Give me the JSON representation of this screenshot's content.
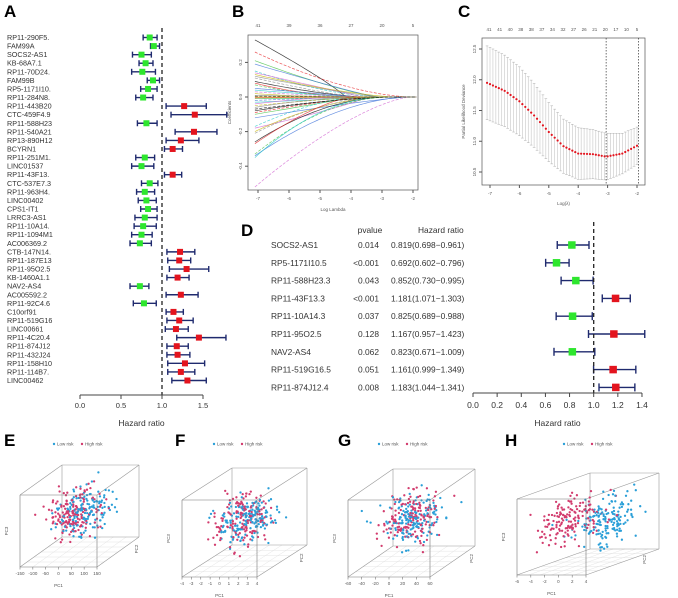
{
  "colors": {
    "protective": "#2ee62e",
    "risk": "#e3141e",
    "errorbar": "#1f2a6e",
    "low_risk": "#2a9fd8",
    "high_risk": "#d23c6e",
    "cv_curve": "#e3141e"
  },
  "chart_data": [
    {
      "panel": "A",
      "type": "forest",
      "xlabel": "Hazard ratio",
      "xticks": [
        "0.0",
        "0.5",
        "1.0",
        "1.5"
      ],
      "xlim": [
        0,
        1.5
      ],
      "reference_line": 1.0,
      "rows": [
        {
          "label": "RP11-290F5.",
          "hr": 0.85,
          "lo": 0.77,
          "hi": 0.94
        },
        {
          "label": "FAM99A",
          "hr": 0.9,
          "lo": 0.86,
          "hi": 0.97
        },
        {
          "label": "SOCS2-AS1",
          "hr": 0.75,
          "lo": 0.64,
          "hi": 0.87
        },
        {
          "label": "KB-68A7.1",
          "hr": 0.8,
          "lo": 0.72,
          "hi": 0.89
        },
        {
          "label": "RP11-70D24.",
          "hr": 0.76,
          "lo": 0.63,
          "hi": 0.92
        },
        {
          "label": "FAM99B",
          "hr": 0.89,
          "lo": 0.82,
          "hi": 0.97
        },
        {
          "label": "RP5-1171I10.",
          "hr": 0.83,
          "lo": 0.74,
          "hi": 0.94
        },
        {
          "label": "RP11-284N8.",
          "hr": 0.77,
          "lo": 0.68,
          "hi": 0.89
        },
        {
          "label": "RP11-443B20",
          "hr": 1.27,
          "lo": 1.05,
          "hi": 1.54
        },
        {
          "label": "CTC-459F4.9",
          "hr": 1.4,
          "lo": 1.11,
          "hi": 1.79
        },
        {
          "label": "RP11-588H23",
          "hr": 0.81,
          "lo": 0.7,
          "hi": 0.94
        },
        {
          "label": "RP11-540A21",
          "hr": 1.39,
          "lo": 1.16,
          "hi": 1.67
        },
        {
          "label": "RP13-890H12",
          "hr": 1.23,
          "lo": 1.05,
          "hi": 1.45
        },
        {
          "label": "BCYRN1",
          "hr": 1.13,
          "lo": 1.03,
          "hi": 1.25
        },
        {
          "label": "RP11-251M1.",
          "hr": 0.79,
          "lo": 0.68,
          "hi": 0.91
        },
        {
          "label": "LINC01537",
          "hr": 0.75,
          "lo": 0.63,
          "hi": 0.9
        },
        {
          "label": "RP11-43F13.",
          "hr": 1.13,
          "lo": 1.03,
          "hi": 1.24
        },
        {
          "label": "CTC-537E7.3",
          "hr": 0.85,
          "lo": 0.75,
          "hi": 0.95
        },
        {
          "label": "RP11-963H4.",
          "hr": 0.79,
          "lo": 0.69,
          "hi": 0.91
        },
        {
          "label": "LINC00402",
          "hr": 0.81,
          "lo": 0.71,
          "hi": 0.93
        },
        {
          "label": "CPS1-IT1",
          "hr": 0.83,
          "lo": 0.74,
          "hi": 0.94
        },
        {
          "label": "LRRC3-AS1",
          "hr": 0.79,
          "lo": 0.67,
          "hi": 0.94
        },
        {
          "label": "RP11-10A14.",
          "hr": 0.77,
          "lo": 0.66,
          "hi": 0.93
        },
        {
          "label": "RP11-1094M1",
          "hr": 0.75,
          "lo": 0.63,
          "hi": 0.88
        },
        {
          "label": "AC006369.2",
          "hr": 0.73,
          "lo": 0.61,
          "hi": 0.87
        },
        {
          "label": "CTB-147N14.",
          "hr": 1.22,
          "lo": 1.06,
          "hi": 1.4
        },
        {
          "label": "RP11-187E13",
          "hr": 1.21,
          "lo": 1.07,
          "hi": 1.35
        },
        {
          "label": "RP11-95O2.5",
          "hr": 1.3,
          "lo": 1.09,
          "hi": 1.57
        },
        {
          "label": "KB-1460A1.1",
          "hr": 1.19,
          "lo": 1.06,
          "hi": 1.33
        },
        {
          "label": "NAV2-AS4",
          "hr": 0.73,
          "lo": 0.61,
          "hi": 0.84
        },
        {
          "label": "AC005592.2",
          "hr": 1.23,
          "lo": 1.05,
          "hi": 1.44
        },
        {
          "label": "RP11-92C4.6",
          "hr": 0.78,
          "lo": 0.65,
          "hi": 0.93
        },
        {
          "label": "C10orf91",
          "hr": 1.14,
          "lo": 1.05,
          "hi": 1.26
        },
        {
          "label": "RP11-519G16",
          "hr": 1.21,
          "lo": 1.06,
          "hi": 1.38
        },
        {
          "label": "LINC00661",
          "hr": 1.17,
          "lo": 1.04,
          "hi": 1.32
        },
        {
          "label": "RP11-4C20.4",
          "hr": 1.45,
          "lo": 1.18,
          "hi": 1.78
        },
        {
          "label": "RP11-874J12",
          "hr": 1.18,
          "lo": 1.06,
          "hi": 1.32
        },
        {
          "label": "RP11-432J24",
          "hr": 1.19,
          "lo": 1.06,
          "hi": 1.34
        },
        {
          "label": "RP11-158H10",
          "hr": 1.28,
          "lo": 1.07,
          "hi": 1.52
        },
        {
          "label": "RP11-114B7.",
          "hr": 1.23,
          "lo": 1.07,
          "hi": 1.4
        },
        {
          "label": "LINC00462",
          "hr": 1.31,
          "lo": 1.12,
          "hi": 1.54
        }
      ]
    },
    {
      "panel": "B",
      "type": "line",
      "xlabel": "Log Lambda",
      "ylabel": "Coefficients",
      "xlim": [
        -7.1,
        -1.9
      ],
      "ylim": [
        -0.53,
        0.36
      ],
      "xticks": [
        "-7",
        "-6",
        "-5",
        "-4",
        "-3",
        "-2"
      ],
      "yticks": [
        "-0.4",
        "-0.2",
        "0.0",
        "0.2"
      ],
      "top_ticks": [
        "41",
        "39",
        "36",
        "27",
        "20",
        "5"
      ],
      "start_coefficients": [
        0.33,
        0.26,
        0.21,
        0.19,
        0.15,
        0.14,
        0.13,
        0.11,
        0.09,
        0.08,
        0.07,
        0.05,
        0.04,
        0.03,
        0.02,
        0.01,
        0.005,
        -0.005,
        -0.01,
        -0.02,
        -0.03,
        -0.04,
        -0.05,
        -0.06,
        -0.08,
        -0.09,
        -0.1,
        -0.12,
        -0.17,
        -0.18,
        -0.2,
        -0.21,
        -0.26,
        -0.27,
        -0.33,
        -0.34,
        -0.35,
        -0.52,
        0.0,
        0.12,
        -0.07
      ]
    },
    {
      "panel": "C",
      "type": "line",
      "xlabel": "Log(λ)",
      "ylabel": "Partial Likelihood Deviance",
      "xlim": [
        -7.1,
        -1.9
      ],
      "ylim": [
        10.4,
        12.6
      ],
      "xticks": [
        "-7",
        "-6",
        "-5",
        "-4",
        "-3",
        "-2"
      ],
      "yticks": [
        "10.5",
        "11.0",
        "11.5",
        "12.0",
        "12.5"
      ],
      "top_ticks": [
        "41",
        "41",
        "40",
        "38",
        "38",
        "37",
        "34",
        "32",
        "27",
        "26",
        "21",
        "20",
        "17",
        "10",
        "5"
      ],
      "x": [
        -7.1,
        -6.5,
        -6.0,
        -5.5,
        -5.0,
        -4.5,
        -4.0,
        -3.5,
        -3.05,
        -2.5,
        -1.95
      ],
      "y": [
        11.95,
        11.82,
        11.65,
        11.42,
        11.15,
        10.92,
        10.8,
        10.79,
        10.75,
        10.8,
        10.94
      ],
      "ci_halfwidth": [
        0.6,
        0.58,
        0.56,
        0.52,
        0.48,
        0.44,
        0.42,
        0.4,
        0.38,
        0.33,
        0.3
      ],
      "vlines": [
        -3.05,
        -1.95
      ]
    },
    {
      "panel": "D",
      "type": "forest",
      "xlabel": "Hazard ratio",
      "col_pvalue": "pvalue",
      "col_hr": "Hazard ratio",
      "xticks": [
        "0.0",
        "0.2",
        "0.4",
        "0.6",
        "0.8",
        "1.0",
        "1.2",
        "1.4"
      ],
      "xlim": [
        0,
        1.4
      ],
      "reference_line": 1.0,
      "rows": [
        {
          "label": "SOCS2-AS1",
          "pvalue": "0.014",
          "hr_text": "0.819(0.698−0.961)",
          "hr": 0.819,
          "lo": 0.698,
          "hi": 0.961
        },
        {
          "label": "RP5-1171I10.5",
          "pvalue": "<0.001",
          "hr_text": "0.692(0.602−0.796)",
          "hr": 0.692,
          "lo": 0.602,
          "hi": 0.796
        },
        {
          "label": "RP11-588H23.3",
          "pvalue": "0.043",
          "hr_text": "0.852(0.730−0.995)",
          "hr": 0.852,
          "lo": 0.73,
          "hi": 0.995
        },
        {
          "label": "RP11-43F13.3",
          "pvalue": "<0.001",
          "hr_text": "1.181(1.071−1.303)",
          "hr": 1.181,
          "lo": 1.071,
          "hi": 1.303
        },
        {
          "label": "RP11-10A14.3",
          "pvalue": "0.037",
          "hr_text": "0.825(0.689−0.988)",
          "hr": 0.825,
          "lo": 0.689,
          "hi": 0.988
        },
        {
          "label": "RP11-95O2.5",
          "pvalue": "0.128",
          "hr_text": "1.167(0.957−1.423)",
          "hr": 1.167,
          "lo": 0.957,
          "hi": 1.423
        },
        {
          "label": "NAV2-AS4",
          "pvalue": "0.062",
          "hr_text": "0.823(0.671−1.009)",
          "hr": 0.823,
          "lo": 0.671,
          "hi": 1.009
        },
        {
          "label": "RP11-519G16.5",
          "pvalue": "0.051",
          "hr_text": "1.161(0.999−1.349)",
          "hr": 1.161,
          "lo": 0.999,
          "hi": 1.349
        },
        {
          "label": "RP11-874J12.4",
          "pvalue": "0.008",
          "hr_text": "1.183(1.044−1.341)",
          "hr": 1.183,
          "lo": 1.044,
          "hi": 1.341
        }
      ]
    },
    {
      "panel": "E",
      "type": "scatter",
      "legend": [
        "Low risk",
        "High risk"
      ],
      "legend_position": "top",
      "xlabel": "PC1",
      "ylabel": "PC3",
      "zlabel": "PC2",
      "xticks": [
        "-150",
        "-100",
        "-50",
        "0",
        "50",
        "100",
        "150"
      ]
    },
    {
      "panel": "F",
      "type": "scatter",
      "legend": [
        "Low risk",
        "High risk"
      ],
      "legend_position": "top",
      "xlabel": "PC1",
      "ylabel": "PC3",
      "zlabel": "PC2",
      "xticks": [
        "-4",
        "-3",
        "-2",
        "-1",
        "0",
        "1",
        "2",
        "3",
        "4"
      ]
    },
    {
      "panel": "G",
      "type": "scatter",
      "legend": [
        "Low risk",
        "High risk"
      ],
      "legend_position": "top",
      "xlabel": "PC1",
      "ylabel": "PC3",
      "zlabel": "PC2",
      "xticks": [
        "-60",
        "-40",
        "-20",
        "0",
        "20",
        "40",
        "60"
      ]
    },
    {
      "panel": "H",
      "type": "scatter",
      "legend": [
        "Low risk",
        "High risk"
      ],
      "legend_position": "top",
      "xlabel": "PC1",
      "ylabel": "PC3",
      "zlabel": "PC2",
      "xticks": [
        "-6",
        "-4",
        "-2",
        "0",
        "2",
        "4"
      ]
    }
  ],
  "panel_labels": {
    "A": "A",
    "B": "B",
    "C": "C",
    "D": "D",
    "E": "E",
    "F": "F",
    "G": "G",
    "H": "H"
  }
}
